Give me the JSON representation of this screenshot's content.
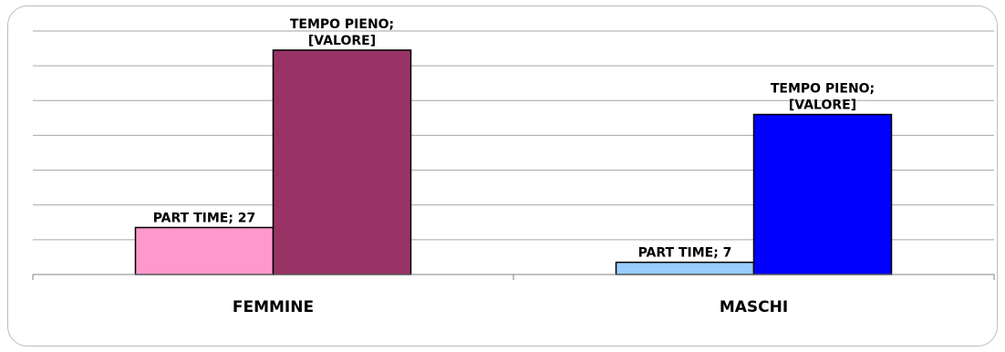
{
  "chart_data": {
    "type": "bar",
    "categories": [
      "FEMMINE",
      "MASCHI"
    ],
    "series": [
      {
        "name": "PART TIME",
        "values": [
          27,
          7
        ],
        "color": "#ff99cc",
        "labels": [
          "PART TIME; 27",
          "PART TIME; 7"
        ]
      },
      {
        "name": "TEMPO PIENO",
        "values": [
          129,
          92
        ],
        "color": "#993366",
        "colors": [
          "#993366",
          "#0000ff"
        ],
        "labels": [
          "TEMPO PIENO;\n[VALORE]",
          "TEMPO PIENO;\n[VALORE]"
        ]
      }
    ],
    "first_series_colors": [
      "#ff99cc",
      "#99ccff"
    ],
    "ylim": [
      0,
      140
    ],
    "gridlines": true,
    "legend": "none",
    "title": "",
    "xlabel": "",
    "ylabel": ""
  }
}
